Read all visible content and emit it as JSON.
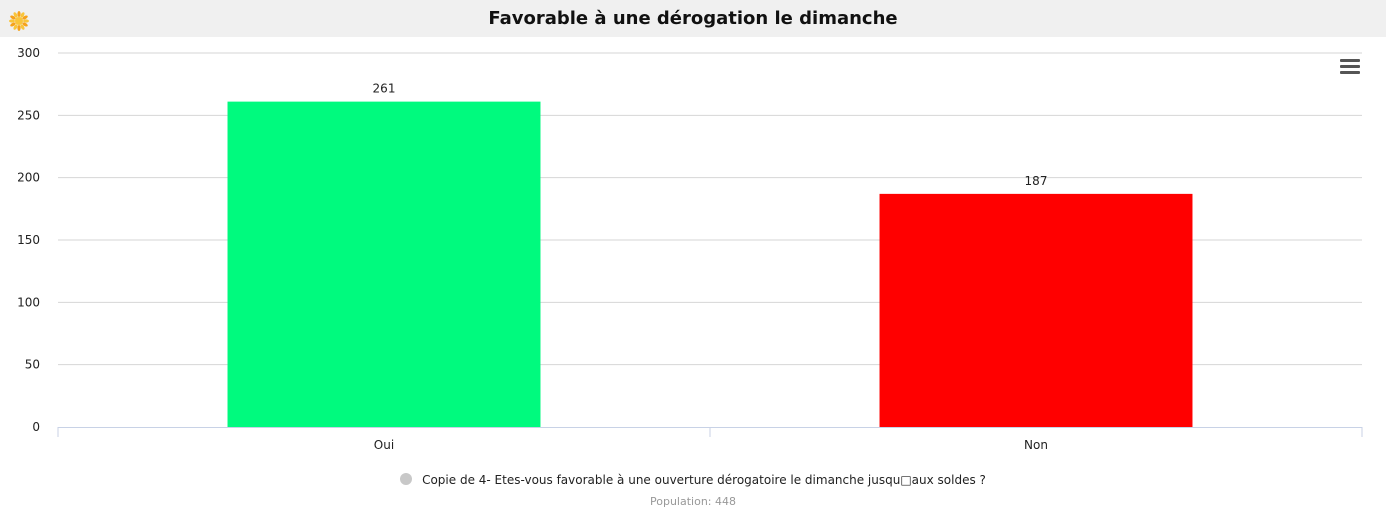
{
  "title": "Favorable à une dérogation le dimanche",
  "menu_icon": "hamburger-menu-icon",
  "logo_icon": "sun-logo-icon",
  "legend_label": "Copie de 4- Etes-vous favorable à une ouverture dérogatoire le dimanche jusqu□aux soldes ?",
  "subtitle": "Population: 448",
  "chart_data": {
    "type": "bar",
    "title": "Favorable à une dérogation le dimanche",
    "categories": [
      "Oui",
      "Non"
    ],
    "values": [
      261,
      187
    ],
    "colors": [
      "#00fa7e",
      "#ff0000"
    ],
    "data_labels": [
      "261",
      "187"
    ],
    "ylim": [
      0,
      300
    ],
    "yticks": [
      0,
      50,
      100,
      150,
      200,
      250,
      300
    ],
    "xlabel": "",
    "ylabel": "",
    "grid": true,
    "legend": "bottom-center",
    "series": [
      {
        "name": "Copie de 4- Etes-vous favorable à une ouverture dérogatoire le dimanche jusqu□aux soldes ?",
        "values": [
          261,
          187
        ]
      }
    ]
  }
}
